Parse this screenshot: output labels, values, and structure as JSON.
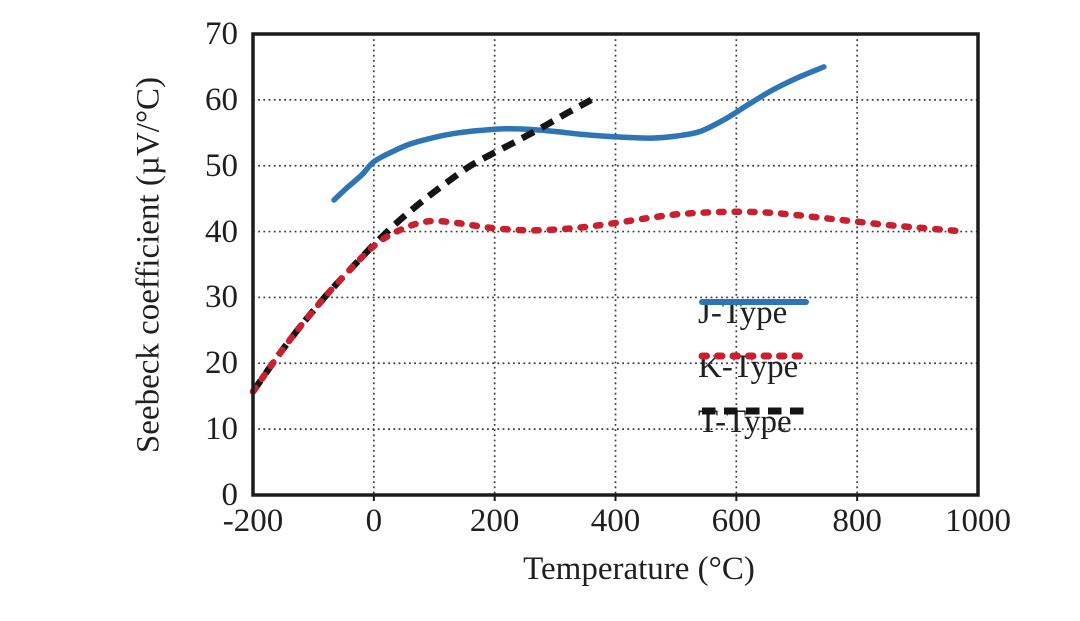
{
  "figure": {
    "background": "#ffffff",
    "text_color": "#1f1f1f",
    "frame_color": "#1c1c1c",
    "grid_color": "#3c3c3c"
  },
  "chart_data": {
    "type": "line",
    "title": "",
    "xlabel": "Temperature (°C)",
    "ylabel": "Seebeck coefficient (µV/°C)",
    "xlim": [
      -200,
      1000
    ],
    "ylim": [
      0,
      70
    ],
    "x_ticks": [
      -200,
      0,
      200,
      400,
      600,
      800,
      1000
    ],
    "y_ticks": [
      0,
      10,
      20,
      30,
      40,
      50,
      60,
      70
    ],
    "grid": "dotted interior gridlines at every tick",
    "legend_position": "inside, center-right",
    "series": [
      {
        "name": "J-Type",
        "color": "#2E75B6",
        "style": "solid",
        "points": [
          [
            -66,
            44.8
          ],
          [
            -45,
            46.6
          ],
          [
            -20,
            48.6
          ],
          [
            0,
            50.6
          ],
          [
            30,
            52.1
          ],
          [
            60,
            53.3
          ],
          [
            100,
            54.3
          ],
          [
            140,
            55.0
          ],
          [
            180,
            55.4
          ],
          [
            220,
            55.6
          ],
          [
            260,
            55.5
          ],
          [
            300,
            55.2
          ],
          [
            340,
            54.8
          ],
          [
            380,
            54.5
          ],
          [
            420,
            54.3
          ],
          [
            460,
            54.2
          ],
          [
            500,
            54.5
          ],
          [
            540,
            55.2
          ],
          [
            580,
            57.0
          ],
          [
            620,
            59.3
          ],
          [
            660,
            61.5
          ],
          [
            700,
            63.3
          ],
          [
            745,
            65.0
          ]
        ]
      },
      {
        "name": "K-Type",
        "color": "#C9202F",
        "style": "dotted",
        "points": [
          [
            -200,
            15.7
          ],
          [
            -175,
            19.0
          ],
          [
            -150,
            22.2
          ],
          [
            -125,
            25.2
          ],
          [
            -100,
            28.0
          ],
          [
            -75,
            30.7
          ],
          [
            -50,
            33.2
          ],
          [
            -25,
            35.6
          ],
          [
            0,
            37.8
          ],
          [
            25,
            39.4
          ],
          [
            50,
            40.5
          ],
          [
            75,
            41.3
          ],
          [
            100,
            41.6
          ],
          [
            130,
            41.4
          ],
          [
            160,
            41.0
          ],
          [
            200,
            40.5
          ],
          [
            250,
            40.2
          ],
          [
            300,
            40.3
          ],
          [
            350,
            40.7
          ],
          [
            400,
            41.3
          ],
          [
            450,
            42.0
          ],
          [
            500,
            42.6
          ],
          [
            550,
            42.9
          ],
          [
            600,
            43.0
          ],
          [
            650,
            42.9
          ],
          [
            700,
            42.5
          ],
          [
            750,
            42.0
          ],
          [
            800,
            41.5
          ],
          [
            850,
            41.0
          ],
          [
            900,
            40.6
          ],
          [
            965,
            40.1
          ]
        ]
      },
      {
        "name": "T-Type",
        "color": "#141414",
        "style": "dashed",
        "points": [
          [
            -200,
            15.7
          ],
          [
            -175,
            19.0
          ],
          [
            -150,
            22.2
          ],
          [
            -125,
            25.2
          ],
          [
            -100,
            28.0
          ],
          [
            -75,
            30.7
          ],
          [
            -50,
            33.2
          ],
          [
            -25,
            35.6
          ],
          [
            0,
            38.0
          ],
          [
            40,
            41.5
          ],
          [
            80,
            44.6
          ],
          [
            120,
            47.4
          ],
          [
            160,
            50.0
          ],
          [
            200,
            52.0
          ],
          [
            240,
            53.9
          ],
          [
            280,
            55.9
          ],
          [
            320,
            58.0
          ],
          [
            360,
            60.0
          ]
        ]
      }
    ]
  },
  "legend": {
    "items": [
      "J-Type",
      "K-Type",
      "T-Type"
    ]
  }
}
